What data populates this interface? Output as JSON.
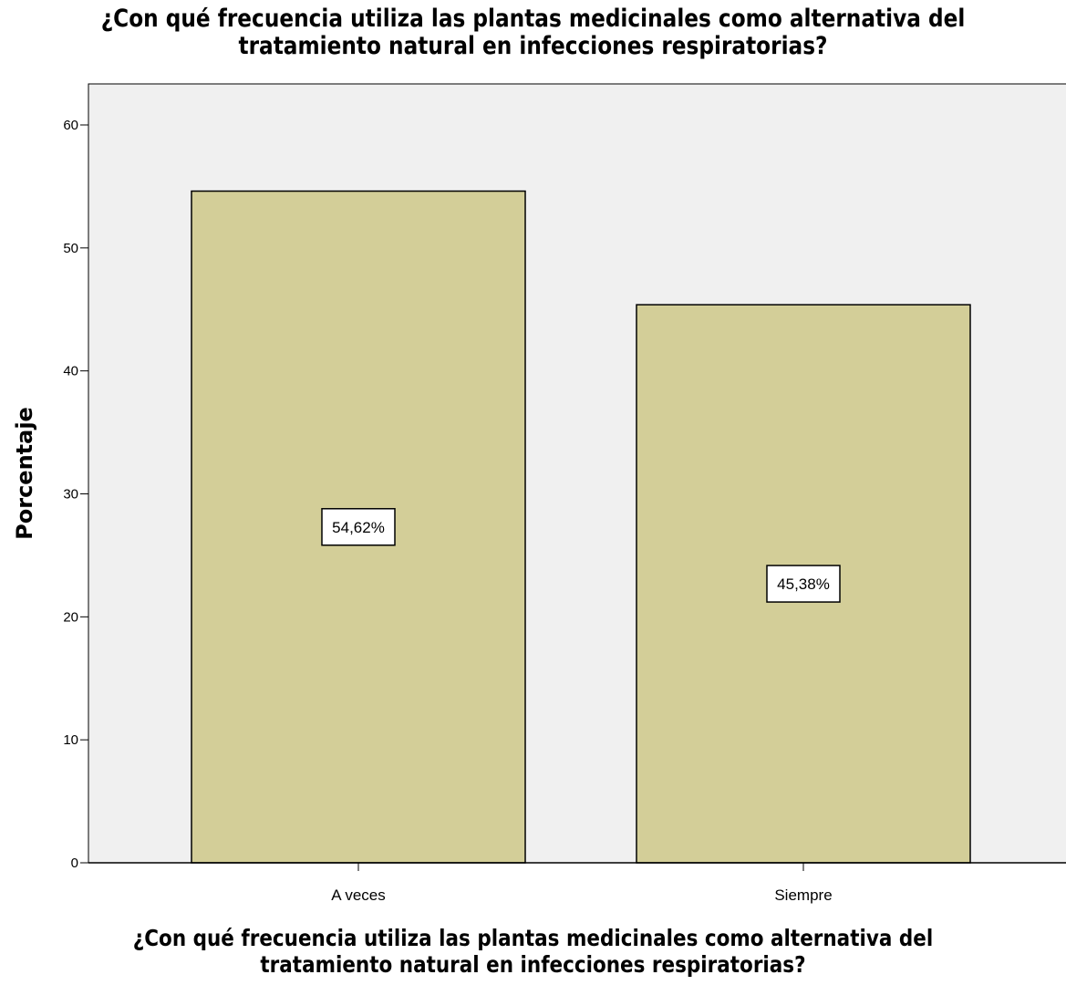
{
  "chart_data": {
    "type": "bar",
    "title_lines": [
      "¿Con qué frecuencia utiliza las plantas medicinales como alternativa del",
      "tratamiento natural en infecciones respiratorias?"
    ],
    "xlabel_lines": [
      "¿Con qué frecuencia utiliza las plantas medicinales como alternativa del",
      "tratamiento natural en infecciones respiratorias?"
    ],
    "ylabel": "Porcentaje",
    "categories": [
      "A veces",
      "Siempre"
    ],
    "values": [
      54.62,
      45.38
    ],
    "data_labels": [
      "54,62%",
      "45,38%"
    ],
    "ylim": [
      0,
      60
    ],
    "yticks": [
      "0",
      "10",
      "20",
      "30",
      "40",
      "50",
      "60"
    ],
    "grid": false,
    "colors": {
      "bar": "#d3ce98",
      "plot_background": "#f0f0f0",
      "label_box": "#ffffff"
    }
  }
}
